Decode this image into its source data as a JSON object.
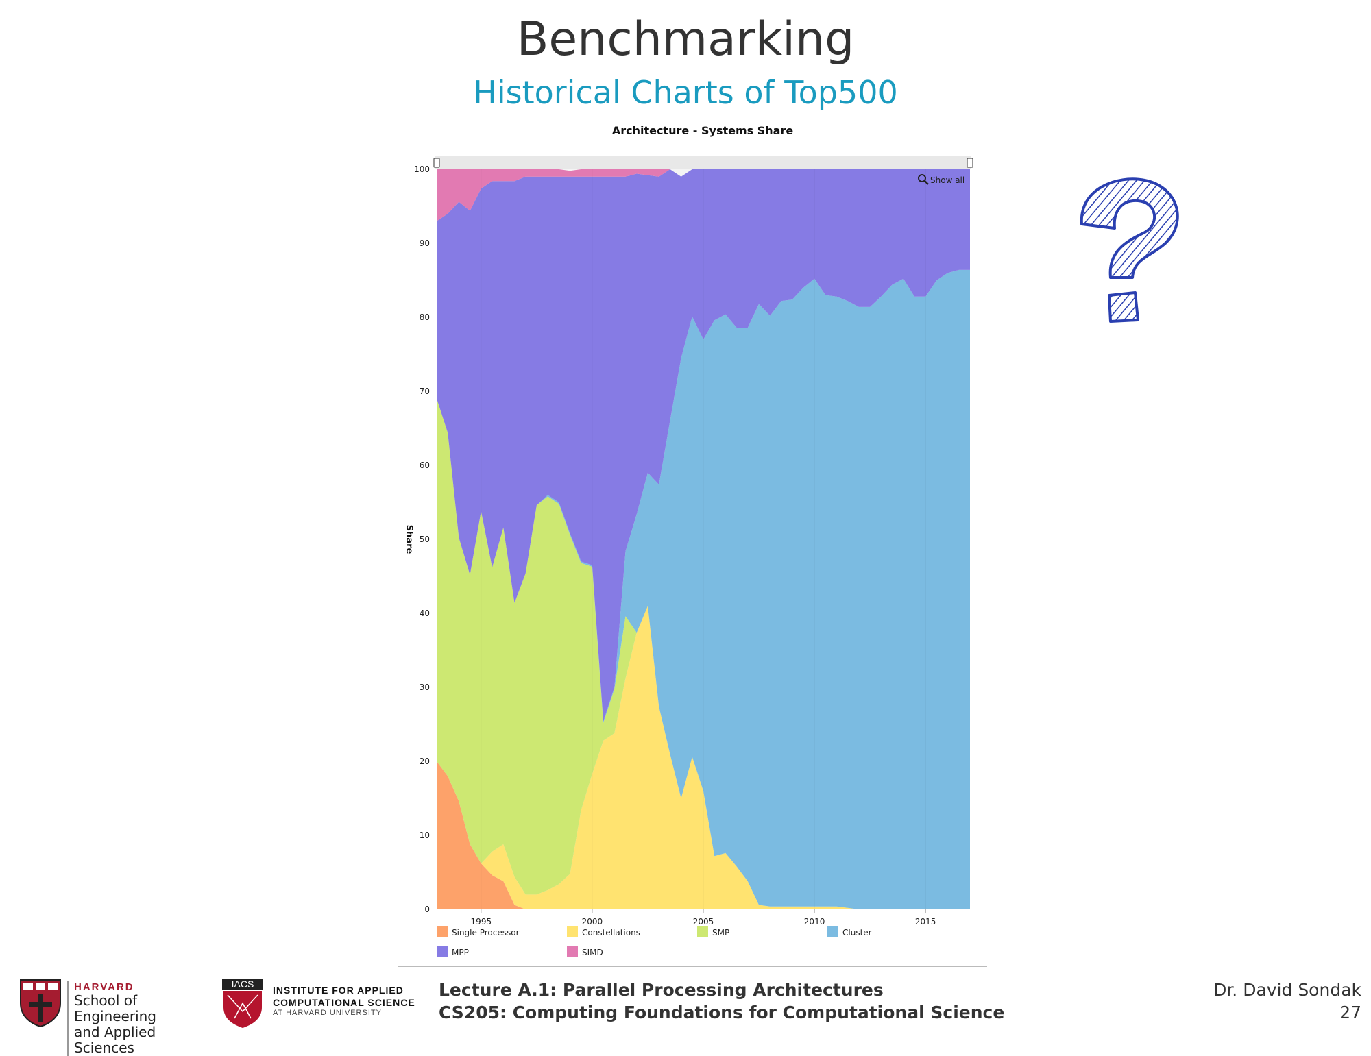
{
  "slide": {
    "title": "Benchmarking",
    "subtitle": "Historical Charts of Top500",
    "footer": {
      "lecture": "Lecture A.1: Parallel Processing Architectures",
      "course": "CS205: Computing Foundations for Computational Science",
      "author": "Dr. David Sondak",
      "page": "27",
      "harvard_top": "HARVARD",
      "harvard_line1": "School of Engineering",
      "harvard_line2": "and Applied Sciences",
      "iacs_badge": "IACS",
      "iacs_line1": "INSTITUTE FOR APPLIED",
      "iacs_line2": "COMPUTATIONAL SCIENCE",
      "iacs_line3": "AT HARVARD UNIVERSITY"
    },
    "icons": [
      "question-mark-icon",
      "zoom-icon",
      "harvard-shield-icon",
      "iacs-shield-icon"
    ]
  },
  "chart_data": {
    "type": "area",
    "stacked": true,
    "title": "Architecture - Systems Share",
    "ylabel": "Share",
    "ylim": [
      0,
      100
    ],
    "xlim": [
      1993,
      2017
    ],
    "yticks": [
      0,
      10,
      20,
      30,
      40,
      50,
      60,
      70,
      80,
      90,
      100
    ],
    "xticks": [
      1995,
      2000,
      2005,
      2010,
      2015
    ],
    "zoom_label": "Show all",
    "legend_position": "bottom",
    "x": [
      1993.0,
      1993.5,
      1994.0,
      1994.5,
      1995.0,
      1995.5,
      1996.0,
      1996.5,
      1997.0,
      1997.5,
      1998.0,
      1998.5,
      1999.0,
      1999.5,
      2000.0,
      2000.5,
      2001.0,
      2001.5,
      2002.0,
      2002.5,
      2003.0,
      2003.5,
      2004.0,
      2004.5,
      2005.0,
      2005.5,
      2006.0,
      2006.5,
      2007.0,
      2007.5,
      2008.0,
      2008.5,
      2009.0,
      2009.5,
      2010.0,
      2010.5,
      2011.0,
      2011.5,
      2012.0,
      2012.5,
      2013.0,
      2013.5,
      2014.0,
      2014.5,
      2015.0,
      2015.5,
      2016.0,
      2016.5,
      2017.0
    ],
    "series": [
      {
        "name": "Single Processor",
        "color": "#fda26a",
        "values": [
          20,
          18,
          14.6,
          8.8,
          6.2,
          4.6,
          3.8,
          0.6,
          0,
          0,
          0,
          0,
          0,
          0,
          0,
          0,
          0,
          0,
          0,
          0,
          0,
          0,
          0,
          0,
          0,
          0,
          0,
          0,
          0,
          0,
          0,
          0,
          0,
          0,
          0,
          0,
          0,
          0,
          0,
          0,
          0,
          0,
          0,
          0,
          0,
          0,
          0,
          0,
          0
        ]
      },
      {
        "name": "Constellations",
        "color": "#ffe370",
        "values": [
          0,
          0,
          0,
          0,
          0,
          3.2,
          5,
          3.8,
          2,
          2,
          2.6,
          3.4,
          4.8,
          13.4,
          18.3,
          22.8,
          23.8,
          31.2,
          37.4,
          41,
          27.4,
          21,
          15,
          20.6,
          16,
          7.2,
          7.6,
          5.8,
          3.8,
          0.6,
          0.4,
          0.4,
          0.4,
          0.4,
          0.4,
          0.4,
          0.4,
          0.2,
          0,
          0,
          0,
          0,
          0,
          0,
          0,
          0,
          0,
          0,
          0
        ]
      },
      {
        "name": "SMP",
        "color": "#cde872",
        "values": [
          49,
          46.4,
          35.6,
          36.4,
          47.6,
          38.4,
          42.8,
          37,
          43.4,
          52.6,
          53.2,
          51.4,
          45.8,
          33.4,
          28,
          2.4,
          6,
          8.4,
          0,
          0,
          0,
          0,
          0,
          0,
          0,
          0,
          0,
          0,
          0,
          0,
          0,
          0,
          0,
          0,
          0,
          0,
          0,
          0,
          0,
          0,
          0,
          0,
          0,
          0,
          0,
          0,
          0,
          0,
          0
        ]
      },
      {
        "name": "Cluster",
        "color": "#7bbbe1",
        "values": [
          0,
          0,
          0,
          0,
          0,
          0,
          0,
          0,
          0,
          0,
          0.2,
          0.2,
          0.2,
          0.2,
          0.2,
          0.2,
          0.2,
          8.8,
          16,
          18,
          30,
          45,
          59.5,
          59.5,
          61,
          72.4,
          72.8,
          72.8,
          74.8,
          81.2,
          79.8,
          81.8,
          82,
          83.6,
          84.8,
          82.6,
          82.4,
          82,
          81.4,
          81.4,
          82.8,
          84.4,
          85.2,
          82.8,
          82.8,
          85,
          86,
          86.4,
          86.4
        ]
      },
      {
        "name": "MPP",
        "color": "#867be4",
        "values": [
          24,
          29.6,
          45.4,
          49.2,
          43.6,
          52.2,
          46.8,
          57,
          53.6,
          44.4,
          43,
          44,
          48.2,
          52,
          52.5,
          73.6,
          69,
          50.6,
          46,
          40.2,
          41.6,
          34,
          24.5,
          19.9,
          23,
          20.4,
          19.6,
          21.4,
          21.4,
          18.2,
          19.8,
          17.8,
          17.6,
          16,
          14.8,
          17,
          17.2,
          17.8,
          18.6,
          18.6,
          17.2,
          15.6,
          14.8,
          17.2,
          17.2,
          15,
          14,
          13.6,
          13.6
        ]
      },
      {
        "name": "SIMD",
        "color": "#e27ab2",
        "values": [
          7,
          6,
          4.4,
          5.6,
          2.6,
          1.6,
          1.6,
          1.6,
          1,
          1,
          1,
          1,
          0.8,
          1,
          1,
          1,
          1,
          1,
          0.6,
          0.8,
          1,
          0,
          0,
          0,
          0,
          0,
          0,
          0,
          0,
          0,
          0,
          0,
          0,
          0,
          0,
          0,
          0,
          0,
          0,
          0,
          0,
          0,
          0,
          0,
          0,
          0,
          0,
          0,
          0
        ]
      }
    ]
  }
}
